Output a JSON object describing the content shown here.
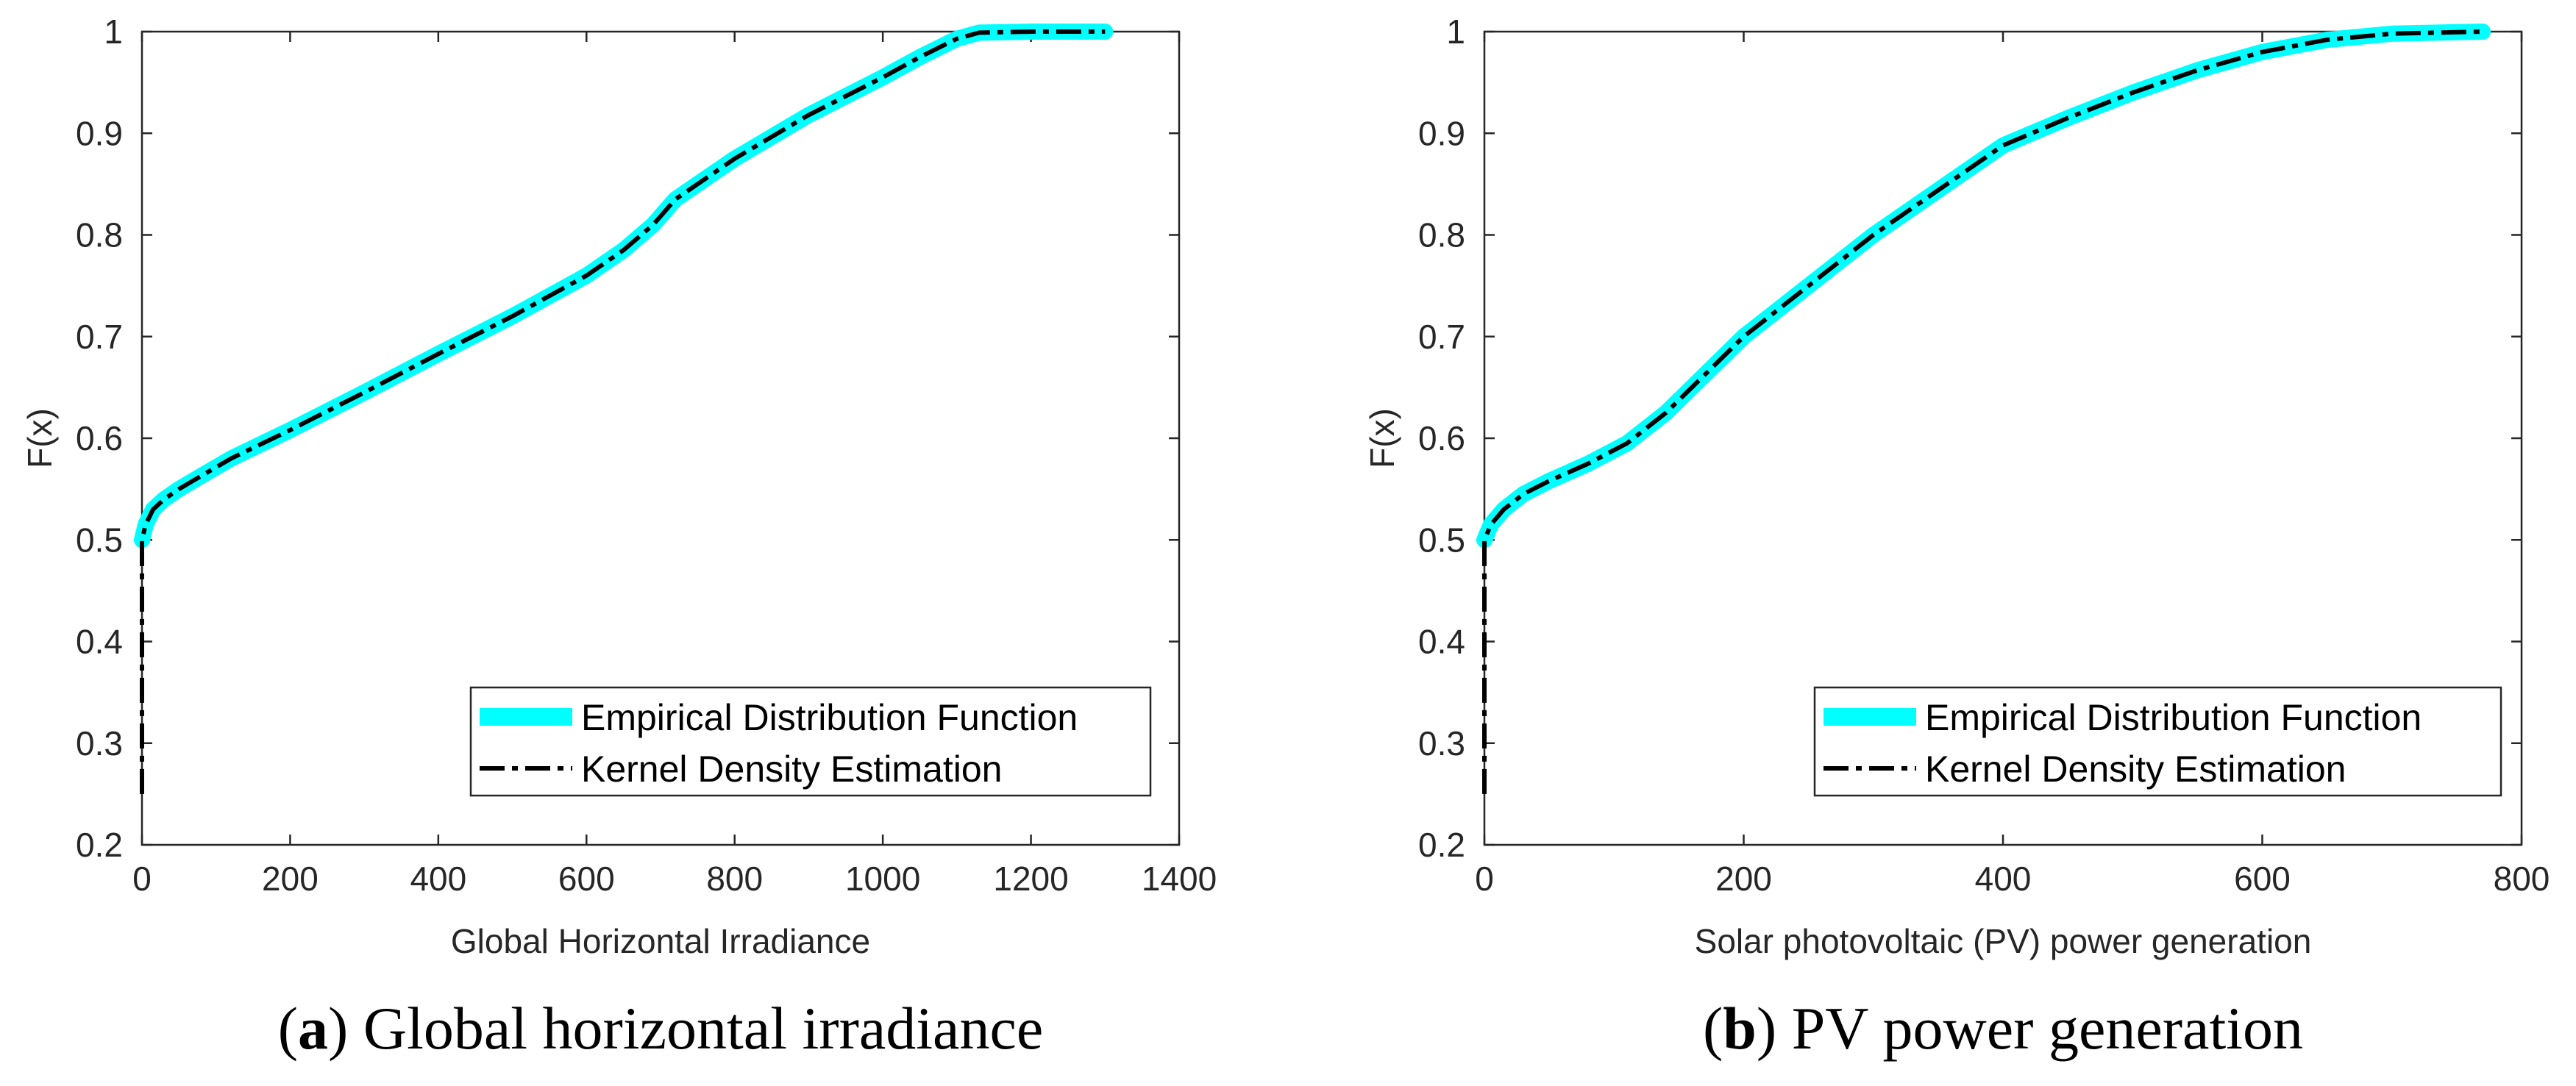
{
  "colors": {
    "edf": "#00FFFF",
    "kde": "#000000",
    "axis": "#262626"
  },
  "legend": {
    "placement": "bottom-right",
    "items": [
      {
        "label": "Empirical Distribution Function"
      },
      {
        "label": "Kernel Density Estimation"
      }
    ]
  },
  "chart_data": [
    {
      "type": "line",
      "caption": {
        "letter": "a",
        "text": ") Global horizontal irradiance"
      },
      "xlabel": "Global Horizontal Irradiance",
      "ylabel": "F(x)",
      "xlim": [
        0,
        1400
      ],
      "ylim": [
        0.2,
        1
      ],
      "xticks": [
        0,
        200,
        400,
        600,
        800,
        1000,
        1200,
        1400
      ],
      "yticks": [
        0.2,
        0.3,
        0.4,
        0.5,
        0.6,
        0.7,
        0.8,
        0.9,
        1
      ],
      "ytick_labels": [
        "0.2",
        "0.3",
        "0.4",
        "0.5",
        "0.6",
        "0.7",
        "0.8",
        "0.9",
        "1"
      ],
      "grid": false,
      "series": [
        {
          "name": "Empirical Distribution Function",
          "x": [
            0,
            5,
            15,
            30,
            50,
            80,
            120,
            200,
            300,
            400,
            500,
            600,
            650,
            690,
            720,
            800,
            900,
            1000,
            1050,
            1100,
            1130,
            1200,
            1300
          ],
          "y": [
            0.5,
            0.515,
            0.53,
            0.54,
            0.55,
            0.563,
            0.58,
            0.608,
            0.645,
            0.683,
            0.72,
            0.76,
            0.785,
            0.81,
            0.835,
            0.875,
            0.918,
            0.955,
            0.975,
            0.993,
            0.999,
            1.0,
            1.0
          ]
        },
        {
          "name": "Kernel Density Estimation",
          "x": [
            0,
            0,
            0,
            5,
            15,
            30,
            50,
            80,
            120,
            200,
            300,
            400,
            500,
            600,
            650,
            690,
            720,
            800,
            900,
            1000,
            1050,
            1100,
            1130,
            1200,
            1300
          ],
          "y": [
            0.25,
            0.45,
            0.5,
            0.515,
            0.53,
            0.54,
            0.55,
            0.563,
            0.58,
            0.608,
            0.645,
            0.683,
            0.72,
            0.76,
            0.785,
            0.81,
            0.835,
            0.875,
            0.918,
            0.955,
            0.975,
            0.993,
            0.999,
            1.0,
            1.0
          ]
        }
      ]
    },
    {
      "type": "line",
      "caption": {
        "letter": "b",
        "text": ") PV power generation"
      },
      "xlabel": "Solar photovoltaic (PV) power generation",
      "ylabel": "F(x)",
      "xlim": [
        0,
        800
      ],
      "ylim": [
        0.2,
        1
      ],
      "xticks": [
        0,
        200,
        400,
        600,
        800
      ],
      "yticks": [
        0.2,
        0.3,
        0.4,
        0.5,
        0.6,
        0.7,
        0.8,
        0.9,
        1
      ],
      "ytick_labels": [
        "0.2",
        "0.3",
        "0.4",
        "0.5",
        "0.6",
        "0.7",
        "0.8",
        "0.9",
        "1"
      ],
      "grid": false,
      "series": [
        {
          "name": "Empirical Distribution Function",
          "x": [
            0,
            5,
            15,
            30,
            50,
            80,
            110,
            140,
            200,
            300,
            400,
            450,
            500,
            550,
            600,
            650,
            700,
            770
          ],
          "y": [
            0.5,
            0.515,
            0.53,
            0.545,
            0.558,
            0.575,
            0.595,
            0.625,
            0.7,
            0.8,
            0.888,
            0.915,
            0.94,
            0.962,
            0.98,
            0.992,
            0.998,
            1.0
          ]
        },
        {
          "name": "Kernel Density Estimation",
          "x": [
            0,
            0,
            0,
            5,
            15,
            30,
            50,
            80,
            110,
            140,
            200,
            300,
            400,
            450,
            500,
            550,
            600,
            650,
            700,
            770
          ],
          "y": [
            0.25,
            0.45,
            0.5,
            0.515,
            0.53,
            0.545,
            0.558,
            0.575,
            0.595,
            0.625,
            0.7,
            0.8,
            0.888,
            0.915,
            0.94,
            0.962,
            0.98,
            0.992,
            0.998,
            1.0
          ]
        }
      ]
    }
  ]
}
